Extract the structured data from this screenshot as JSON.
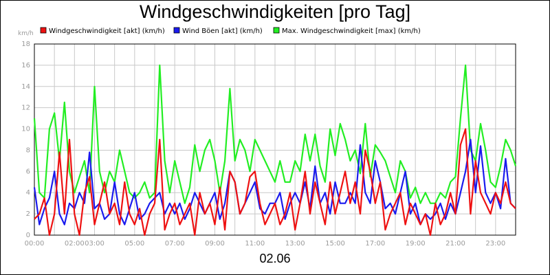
{
  "chart_data": {
    "type": "line",
    "title": "Windgeschwindigkeiten [pro Tag]",
    "xlabel": "02.06",
    "ylabel": "km/h",
    "ylim": [
      0,
      18
    ],
    "xlim": [
      0,
      24
    ],
    "grid": true,
    "legend_position": "top",
    "y_ticks": [
      0,
      2,
      4,
      6,
      8,
      10,
      12,
      14,
      16,
      18
    ],
    "x_ticks": [
      {
        "h": 0,
        "label": "00:00"
      },
      {
        "h": 2,
        "label": "02:00"
      },
      {
        "h": 3,
        "label": "03:00"
      },
      {
        "h": 5,
        "label": "05:00"
      },
      {
        "h": 7,
        "label": "07:00"
      },
      {
        "h": 9,
        "label": "09:00"
      },
      {
        "h": 11,
        "label": "11:00"
      },
      {
        "h": 13,
        "label": "13:00"
      },
      {
        "h": 15,
        "label": "15:00"
      },
      {
        "h": 17,
        "label": "17:00"
      },
      {
        "h": 19,
        "label": "19:00"
      },
      {
        "h": 21,
        "label": "21:00"
      },
      {
        "h": 23,
        "label": "23:00"
      }
    ],
    "series": [
      {
        "name": "Max. Windgeschwindigkeit [max] (km/h)",
        "color": "#22ee22",
        "x": [
          0,
          0.25,
          0.5,
          0.75,
          1,
          1.25,
          1.5,
          1.75,
          2,
          2.25,
          2.5,
          2.75,
          3,
          3.25,
          3.5,
          3.75,
          4,
          4.25,
          4.5,
          4.75,
          5,
          5.25,
          5.5,
          5.75,
          6,
          6.25,
          6.5,
          6.75,
          7,
          7.25,
          7.5,
          7.75,
          8,
          8.25,
          8.5,
          8.75,
          9,
          9.25,
          9.5,
          9.75,
          10,
          10.25,
          10.5,
          10.75,
          11,
          11.25,
          11.5,
          11.75,
          12,
          12.25,
          12.5,
          12.75,
          13,
          13.25,
          13.5,
          13.75,
          14,
          14.25,
          14.5,
          14.75,
          15,
          15.25,
          15.5,
          15.75,
          16,
          16.25,
          16.5,
          16.75,
          17,
          17.25,
          17.5,
          17.75,
          18,
          18.25,
          18.5,
          18.75,
          19,
          19.25,
          19.5,
          19.75,
          20,
          20.25,
          20.5,
          20.75,
          21,
          21.25,
          21.5,
          21.75,
          22,
          22.25,
          22.5,
          22.75,
          23,
          23.25,
          23.5,
          23.75,
          24
        ],
        "values": [
          11,
          4,
          3.5,
          10,
          11.5,
          7,
          12.5,
          6,
          4,
          5.5,
          7,
          4,
          14,
          6,
          4,
          6,
          5,
          8,
          6,
          4,
          3.5,
          4,
          5,
          3.5,
          4,
          16,
          7,
          4,
          7,
          5,
          3,
          4.5,
          8.5,
          6,
          8,
          9,
          7,
          4,
          7,
          13.8,
          7,
          9,
          8,
          6,
          9,
          8,
          7,
          6,
          5,
          7,
          5,
          5,
          7,
          6,
          9.5,
          7,
          9.5,
          6.5,
          5,
          10,
          7.5,
          10.5,
          9,
          7,
          8,
          5.8,
          10.5,
          5.5,
          8.5,
          7.8,
          7,
          5.5,
          4,
          7,
          6,
          3.5,
          4.5,
          3,
          4,
          3,
          3,
          4,
          3.5,
          5,
          5.5,
          11,
          16,
          8,
          7,
          10.5,
          8,
          5,
          4.5,
          6.5,
          9,
          8,
          6.5
        ]
      },
      {
        "name": "Wind Böen [akt] (km/h)",
        "color": "#1a1aee",
        "x": [
          0,
          0.25,
          0.5,
          0.75,
          1,
          1.25,
          1.5,
          1.75,
          2,
          2.25,
          2.5,
          2.75,
          3,
          3.25,
          3.5,
          3.75,
          4,
          4.25,
          4.5,
          4.75,
          5,
          5.25,
          5.5,
          5.75,
          6,
          6.25,
          6.5,
          6.75,
          7,
          7.25,
          7.5,
          7.75,
          8,
          8.25,
          8.5,
          8.75,
          9,
          9.25,
          9.5,
          9.75,
          10,
          10.25,
          10.5,
          10.75,
          11,
          11.25,
          11.5,
          11.75,
          12,
          12.25,
          12.5,
          12.75,
          13,
          13.25,
          13.5,
          13.75,
          14,
          14.25,
          14.5,
          14.75,
          15,
          15.25,
          15.5,
          15.75,
          16,
          16.25,
          16.5,
          16.75,
          17,
          17.25,
          17.5,
          17.75,
          18,
          18.25,
          18.5,
          18.75,
          19,
          19.25,
          19.5,
          19.75,
          20,
          20.25,
          20.5,
          20.75,
          21,
          21.25,
          21.5,
          21.75,
          22,
          22.25,
          22.5,
          22.75,
          23,
          23.25,
          23.5,
          23.75,
          24
        ],
        "values": [
          4.5,
          1,
          2.5,
          3.5,
          6,
          2,
          1,
          3,
          2.5,
          4,
          3,
          7.8,
          2.5,
          3,
          1.5,
          2,
          5,
          2,
          1,
          2.5,
          4,
          1.5,
          2,
          3,
          3.5,
          4,
          2,
          3,
          2,
          3,
          1.5,
          2.5,
          4,
          3,
          2,
          3,
          4,
          1.5,
          3,
          6,
          5,
          2,
          3,
          4,
          5,
          2.5,
          2,
          3,
          3,
          4,
          1.5,
          3,
          4,
          3,
          5,
          2.5,
          6.5,
          3,
          4,
          2,
          5,
          3,
          3,
          4,
          3,
          8.5,
          4,
          3,
          7,
          5,
          2.5,
          3,
          2,
          4,
          6,
          2,
          3,
          1,
          2,
          1.5,
          2,
          3,
          1.5,
          3,
          2,
          4,
          6,
          9,
          4,
          8.4,
          4,
          3,
          4,
          2.5,
          7.2,
          3,
          2.5
        ]
      },
      {
        "name": "Windgeschwindigkeit [akt] (km/h)",
        "color": "#ee1111",
        "x": [
          0,
          0.25,
          0.5,
          0.75,
          1,
          1.25,
          1.5,
          1.75,
          2,
          2.25,
          2.5,
          2.75,
          3,
          3.25,
          3.5,
          3.75,
          4,
          4.25,
          4.5,
          4.75,
          5,
          5.25,
          5.5,
          5.75,
          6,
          6.25,
          6.5,
          6.75,
          7,
          7.25,
          7.5,
          7.75,
          8,
          8.25,
          8.5,
          8.75,
          9,
          9.25,
          9.5,
          9.75,
          10,
          10.25,
          10.5,
          10.75,
          11,
          11.25,
          11.5,
          11.75,
          12,
          12.25,
          12.5,
          12.75,
          13,
          13.25,
          13.5,
          13.75,
          14,
          14.25,
          14.5,
          14.75,
          15,
          15.25,
          15.5,
          15.75,
          16,
          16.25,
          16.5,
          16.75,
          17,
          17.25,
          17.5,
          17.75,
          18,
          18.25,
          18.5,
          18.75,
          19,
          19.25,
          19.5,
          19.75,
          20,
          20.25,
          20.5,
          20.75,
          21,
          21.25,
          21.5,
          21.75,
          22,
          22.25,
          22.5,
          22.75,
          23,
          23.25,
          23.5,
          23.75,
          24
        ],
        "values": [
          1.5,
          2,
          3.5,
          0,
          2,
          7.8,
          2,
          9,
          2,
          0,
          4,
          5.5,
          1,
          3,
          5,
          2,
          3,
          1,
          5,
          2,
          1,
          2.5,
          0,
          2,
          3,
          9,
          0.5,
          2,
          3,
          1,
          2,
          3,
          0,
          4,
          2,
          3,
          1,
          4.5,
          0.5,
          6,
          5,
          2,
          3,
          5.5,
          6,
          3,
          1,
          2,
          3,
          1,
          2,
          4,
          0.5,
          3,
          6,
          2,
          5,
          3,
          1,
          5,
          2,
          4,
          6,
          3,
          5,
          2,
          8,
          6,
          3,
          5,
          0.5,
          2,
          3,
          4,
          1,
          3,
          2,
          1,
          2,
          0,
          3,
          1,
          2,
          4,
          2,
          8.5,
          10,
          2,
          7,
          4,
          3,
          2,
          4,
          3,
          5,
          3,
          2.5
        ]
      }
    ]
  }
}
